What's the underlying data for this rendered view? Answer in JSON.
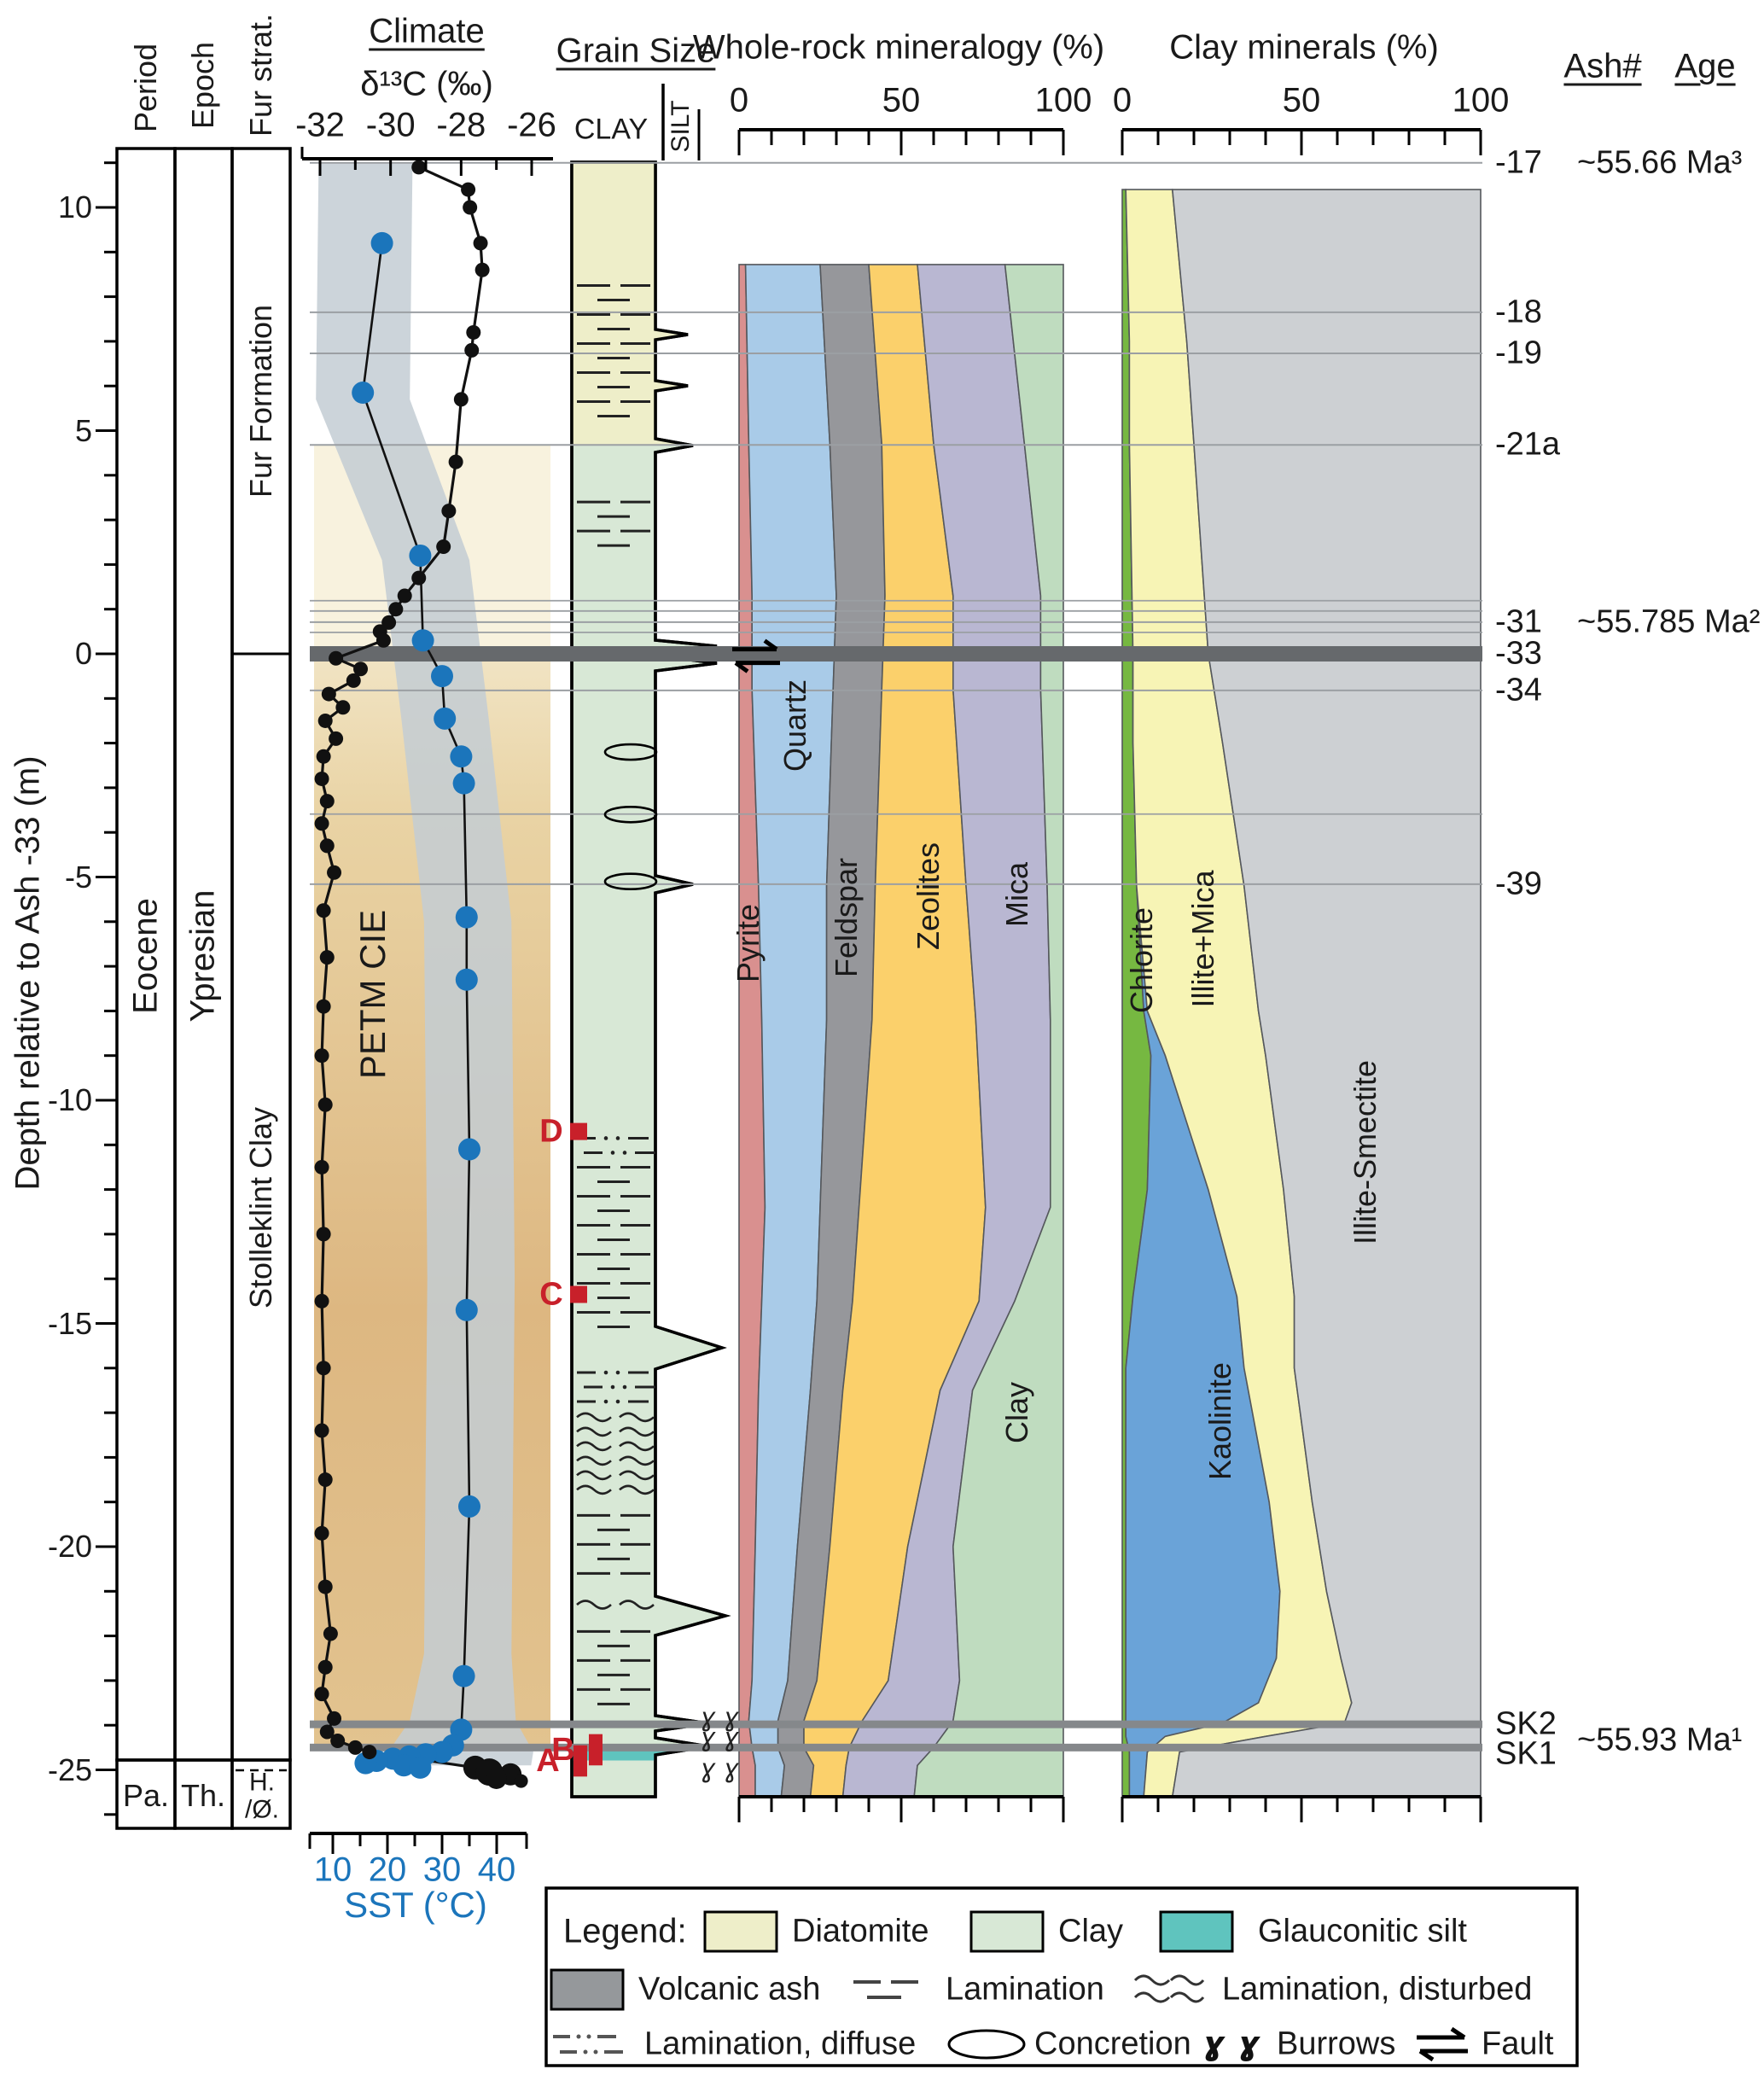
{
  "labels": {
    "period_header": "Period",
    "epoch_header": "Epoch",
    "strat_header": "Fur strat.",
    "climate_title": "Climate",
    "d13c_axis": "δ¹³C (‰)",
    "sst_axis": "SST (°C)",
    "grain_title": "Grain Size",
    "clay_scale": "CLAY",
    "silt_scale": "SILT",
    "wholerock_title": "Whole-rock mineralogy (%)",
    "clayminerals_title": "Clay minerals (%)",
    "ash_header": "Ash#",
    "age_header": "Age",
    "depth_axis": "Depth relative to Ash -33 (m)",
    "period": "Eocene",
    "epoch": "Ypresian",
    "strat_upper": "Fur Formation",
    "strat_lower": "Stolleklint Clay",
    "period_bottom": "Pa.",
    "epoch_bottom": "Th.",
    "strat_bottom": "H.\n/Ø.",
    "petm": "PETM CIE"
  },
  "legend": {
    "title": "Legend:",
    "diatomite": "Diatomite",
    "clay": "Clay",
    "glauconitic": "Glauconitic silt",
    "volcanic_ash": "Volcanic ash",
    "lamination": "Lamination",
    "lamination_disturbed": "Lamination, disturbed",
    "lamination_diffuse": "Lamination, diffuse",
    "concretion": "Concretion",
    "burrows": "Burrows",
    "fault": "Fault"
  },
  "colors": {
    "diatomite": "#eeeec9",
    "clay_litho": "#d8e8d6",
    "glauconitic": "#5fc4be",
    "volcanic_ash": "#95989b",
    "ash_band_thick": "#66696c",
    "sst_blue": "#1b75bb",
    "marker_red": "#c8202a",
    "petm_tan_light": "#f4ead0",
    "petm_tan_dark": "#ddb276",
    "upper_pale": "#f8f2de",
    "sst_band_gray": "#c3ccd3"
  },
  "chart_data": {
    "type": "composite-stratigraphic",
    "depth_axis": {
      "label": "Depth relative to Ash -33 (m)",
      "unit": "m",
      "top": 11.6,
      "bottom": -26.0,
      "major_ticks": [
        10,
        5,
        0,
        -5,
        -10,
        -15,
        -20,
        -25
      ]
    },
    "climate": {
      "d13c": {
        "label": "δ¹³C (‰)",
        "ticks": [
          -32,
          -30,
          -28,
          -26
        ],
        "range": [
          -32.3,
          -25.7
        ],
        "series": [
          [
            10.9,
            -29.2
          ],
          [
            10.4,
            -27.8
          ],
          [
            10.0,
            -27.75
          ],
          [
            9.2,
            -27.45
          ],
          [
            8.6,
            -27.4
          ],
          [
            7.2,
            -27.65
          ],
          [
            6.8,
            -27.7
          ],
          [
            5.7,
            -28.0
          ],
          [
            4.3,
            -28.15
          ],
          [
            3.2,
            -28.35
          ],
          [
            2.4,
            -28.5
          ],
          [
            1.7,
            -29.2
          ],
          [
            1.3,
            -29.6
          ],
          [
            1.0,
            -29.85
          ],
          [
            0.7,
            -30.05
          ],
          [
            0.5,
            -30.3
          ],
          [
            0.3,
            -30.2
          ],
          [
            -0.1,
            -31.55
          ],
          [
            -0.34,
            -30.85
          ],
          [
            -0.6,
            -31.05
          ],
          [
            -0.9,
            -31.75
          ],
          [
            -1.2,
            -31.35
          ],
          [
            -1.5,
            -31.85
          ],
          [
            -1.9,
            -31.55
          ],
          [
            -2.3,
            -31.9
          ],
          [
            -2.8,
            -31.95
          ],
          [
            -3.3,
            -31.8
          ],
          [
            -3.8,
            -31.95
          ],
          [
            -4.3,
            -31.8
          ],
          [
            -4.9,
            -31.6
          ],
          [
            -5.75,
            -31.9
          ],
          [
            -6.8,
            -31.8
          ],
          [
            -7.9,
            -31.9
          ],
          [
            -9.0,
            -31.95
          ],
          [
            -10.1,
            -31.85
          ],
          [
            -11.5,
            -31.95
          ],
          [
            -13.0,
            -31.9
          ],
          [
            -14.5,
            -31.95
          ],
          [
            -16.0,
            -31.9
          ],
          [
            -17.4,
            -31.95
          ],
          [
            -18.5,
            -31.85
          ],
          [
            -19.7,
            -31.95
          ],
          [
            -20.9,
            -31.85
          ],
          [
            -21.95,
            -31.7
          ],
          [
            -22.7,
            -31.85
          ],
          [
            -23.3,
            -31.95
          ],
          [
            -23.85,
            -31.6
          ],
          [
            -24.15,
            -31.8
          ],
          [
            -24.35,
            -31.5
          ],
          [
            -24.5,
            -31.0
          ],
          [
            -24.6,
            -30.6
          ],
          [
            -24.95,
            -27.6,
            14
          ],
          [
            -25.05,
            -27.2,
            16
          ],
          [
            -25.1,
            -26.6,
            13
          ],
          [
            -25.2,
            -27.0,
            12
          ],
          [
            -25.25,
            -26.3,
            8
          ]
        ]
      },
      "sst": {
        "label": "SST (°C)",
        "ticks": [
          10,
          20,
          30,
          40
        ],
        "series": [
          [
            9.2,
            19
          ],
          [
            5.85,
            15.5
          ],
          [
            2.2,
            26
          ],
          [
            0.3,
            26.5
          ],
          [
            -0.5,
            30
          ],
          [
            -1.45,
            30.5
          ],
          [
            -2.3,
            33.5
          ],
          [
            -2.9,
            34
          ],
          [
            -5.9,
            34.5
          ],
          [
            -7.3,
            34.5
          ],
          [
            -11.1,
            35
          ],
          [
            -14.7,
            34.5
          ],
          [
            -19.1,
            35
          ],
          [
            -22.9,
            34
          ],
          [
            -24.1,
            33.5
          ],
          [
            -24.45,
            32
          ],
          [
            -24.6,
            30
          ],
          [
            -24.65,
            27
          ],
          [
            -24.7,
            24
          ],
          [
            -24.75,
            21
          ],
          [
            -24.8,
            18
          ],
          [
            -24.85,
            16
          ],
          [
            -24.9,
            23
          ],
          [
            -24.95,
            26
          ]
        ],
        "uncertainty_band": [
          {
            "d": 11.0,
            "v": 16.0,
            "w": 8.6
          },
          {
            "d": 5.7,
            "v": 15.5,
            "w": 8.6
          },
          {
            "d": 2.1,
            "v": 27.0,
            "w": 8.0
          },
          {
            "d": -1.5,
            "v": 30.6,
            "w": 8.0
          },
          {
            "d": -6.0,
            "v": 34.7,
            "w": 8.0
          },
          {
            "d": -14.0,
            "v": 35.3,
            "w": 8.0
          },
          {
            "d": -22.4,
            "v": 34.7,
            "w": 8.0
          },
          {
            "d": -23.9,
            "v": 33.8,
            "w": 9.7
          },
          {
            "d": -24.6,
            "v": 33.4,
            "w": 13.3
          },
          {
            "d": -24.9,
            "v": 33.0,
            "w": 13.3
          }
        ]
      },
      "petm_shading": {
        "pale_from": 4.68,
        "pale_to": 0.0,
        "tan_from": 0.0,
        "tan_to": -24.5
      }
    },
    "wholerock": {
      "title": "Whole-rock mineralogy (%)",
      "ticks": [
        0,
        50,
        100
      ],
      "series": [
        {
          "name": "Pyrite",
          "color": "#d9908f"
        },
        {
          "name": "Quartz",
          "color": "#a9cbe8"
        },
        {
          "name": "Feldspar",
          "color": "#96979b"
        },
        {
          "name": "Zeolites",
          "color": "#fbd06b"
        },
        {
          "name": "Mica",
          "color": "#b9b7d2"
        },
        {
          "name": "Clay",
          "color": "#bfdcbf"
        }
      ],
      "knots": [
        [
          8.72,
          [
            2,
            25,
            40,
            55,
            82
          ]
        ],
        [
          4.7,
          [
            3,
            28,
            44,
            60,
            88
          ]
        ],
        [
          1.3,
          [
            4,
            30,
            45,
            66,
            93
          ]
        ],
        [
          -0.8,
          [
            4,
            29,
            44,
            66,
            93
          ]
        ],
        [
          -5.2,
          [
            6,
            27,
            42,
            70,
            95
          ]
        ],
        [
          -8.2,
          [
            7,
            27,
            41,
            73,
            96
          ]
        ],
        [
          -12.4,
          [
            8,
            25,
            37,
            76,
            96
          ]
        ],
        [
          -14.5,
          [
            7,
            24,
            35,
            74,
            85
          ]
        ],
        [
          -16.5,
          [
            6,
            22,
            32,
            62,
            72
          ]
        ],
        [
          -20.0,
          [
            5,
            18,
            28,
            52,
            66
          ]
        ],
        [
          -23.0,
          [
            4,
            15,
            24,
            46,
            68
          ]
        ],
        [
          -23.9,
          [
            3,
            12,
            20,
            38,
            66
          ]
        ],
        [
          -24.5,
          [
            4,
            12,
            20,
            34,
            60
          ]
        ],
        [
          -24.9,
          [
            5,
            14,
            23,
            33,
            55
          ]
        ],
        [
          -25.6,
          [
            5,
            13,
            22,
            32,
            54
          ]
        ]
      ]
    },
    "clayminerals": {
      "title": "Clay minerals (%)",
      "ticks": [
        0,
        50,
        100
      ],
      "series": [
        {
          "name": "Chlorite",
          "color": "#76b841"
        },
        {
          "name": "Kaolinite",
          "color": "#6aa3d8"
        },
        {
          "name": "Illite+Mica",
          "color": "#f7f4b5"
        },
        {
          "name": "Illite-Smectite",
          "color": "#cdd0d3"
        }
      ],
      "knots": [
        [
          10.4,
          [
            1,
            1,
            14
          ]
        ],
        [
          7.0,
          [
            2,
            2,
            18
          ]
        ],
        [
          4.7,
          [
            2,
            2,
            20
          ]
        ],
        [
          0.0,
          [
            3,
            3,
            24
          ]
        ],
        [
          -2.0,
          [
            3,
            3,
            28
          ]
        ],
        [
          -5.2,
          [
            4,
            4,
            34
          ]
        ],
        [
          -8.0,
          [
            6,
            7,
            38
          ]
        ],
        [
          -9.0,
          [
            8,
            12,
            40
          ]
        ],
        [
          -12.0,
          [
            7,
            24,
            45
          ]
        ],
        [
          -14.4,
          [
            3,
            32,
            48
          ]
        ],
        [
          -16.0,
          [
            1,
            34,
            48
          ]
        ],
        [
          -19.0,
          [
            1,
            41,
            53
          ]
        ],
        [
          -21.0,
          [
            1,
            44,
            57
          ]
        ],
        [
          -22.5,
          [
            1,
            43,
            61
          ]
        ],
        [
          -23.5,
          [
            1,
            38,
            64
          ]
        ],
        [
          -23.95,
          [
            1,
            28,
            62
          ]
        ],
        [
          -24.25,
          [
            1,
            12,
            40
          ]
        ],
        [
          -24.6,
          [
            2,
            7,
            16
          ]
        ],
        [
          -25.6,
          [
            2,
            6,
            14
          ]
        ]
      ]
    },
    "ashes": [
      {
        "name": "-17",
        "age": "~55.66 Ma³",
        "depth": 11.0,
        "style": "thin"
      },
      {
        "name": "-18",
        "depth": 7.65,
        "style": "thin"
      },
      {
        "name": "-19",
        "depth": 6.73,
        "style": "thin"
      },
      {
        "name": "-21a",
        "depth": 4.68,
        "style": "thin"
      },
      {
        "name": "-31",
        "age": "~55.785 Ma²",
        "depth": 0.71,
        "style": "thin"
      },
      {
        "name": "-33",
        "depth": 0.0,
        "style": "thick"
      },
      {
        "name": "-34",
        "depth": -0.82,
        "style": "thin"
      },
      {
        "name": "-39",
        "depth": -5.16,
        "style": "thin"
      },
      {
        "name": "SK2",
        "depth": -23.98,
        "style": "band"
      },
      {
        "name": "SK1",
        "age": "~55.93 Ma¹",
        "depth": -24.5,
        "style": "band"
      }
    ],
    "extra_thin_lines_depth": [
      1.19,
      0.96,
      0.48,
      -3.59
    ],
    "grainsize": {
      "column": "CLAY / SILT lithology log",
      "lithology": [
        {
          "name": "diatomite",
          "from": 11.0,
          "to": 4.68
        },
        {
          "name": "clay",
          "from": 4.68,
          "to": -25.6
        },
        {
          "name": "glauconitic_silt",
          "from": -24.56,
          "to": -24.79
        }
      ],
      "silt_spikes_depth": [
        7.3,
        6.2,
        4.7,
        0.15,
        -0.25,
        -5.15,
        -15.3,
        -21.4,
        -23.95,
        -24.45
      ],
      "symbols": [
        {
          "type": "lamination",
          "from": 8.25,
          "to": 5.3
        },
        {
          "type": "lamination",
          "from": 3.4,
          "to": 2.4
        },
        {
          "type": "concretion",
          "at": -2.2
        },
        {
          "type": "concretion",
          "at": -3.6
        },
        {
          "type": "concretion",
          "at": -5.1
        },
        {
          "type": "lamination_diffuse",
          "from": -10.85,
          "to": -11.2
        },
        {
          "type": "lamination",
          "from": -11.5,
          "to": -15.1
        },
        {
          "type": "lamination_diffuse",
          "from": -16.1,
          "to": -16.8
        },
        {
          "type": "lamination_disturbed",
          "from": -17.1,
          "to": -19.0
        },
        {
          "type": "lamination",
          "from": -19.3,
          "to": -20.9
        },
        {
          "type": "lamination_disturbed",
          "from": -21.3,
          "to": -21.6
        },
        {
          "type": "lamination",
          "from": -21.9,
          "to": -23.7
        }
      ],
      "burrows_depth": [
        -23.85,
        -24.3,
        -25.0
      ],
      "fault_depth": -0.05,
      "sample_markers": [
        {
          "label": "D",
          "kind": "square",
          "depth": -10.7
        },
        {
          "label": "C",
          "kind": "square",
          "depth": -14.35
        },
        {
          "label": "B",
          "kind": "bar",
          "depth_top": -24.2,
          "depth_bottom": -24.9,
          "x": 690
        },
        {
          "label": "A",
          "kind": "bar",
          "depth_top": -24.45,
          "depth_bottom": -25.15,
          "x": 672
        }
      ]
    }
  }
}
